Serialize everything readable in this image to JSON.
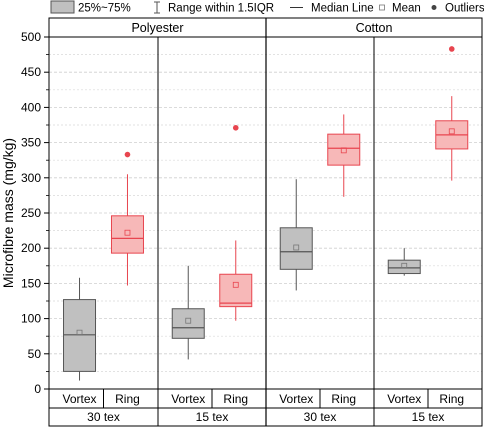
{
  "chart_data": {
    "type": "box",
    "ylabel": "Microfibre mass (mg/kg)",
    "ylim": [
      0,
      500
    ],
    "yticks": [
      0,
      50,
      100,
      150,
      200,
      250,
      300,
      350,
      400,
      450,
      500
    ],
    "legend": {
      "placement": "top",
      "items": [
        {
          "key": "box",
          "label": "25%~75%"
        },
        {
          "key": "whisker",
          "label": "Range within 1.5IQR"
        },
        {
          "key": "median",
          "label": "Median Line"
        },
        {
          "key": "mean",
          "label": "Mean"
        },
        {
          "key": "outlier",
          "label": "Outliers"
        }
      ]
    },
    "fibre_groups": [
      "Polyester",
      "Cotton"
    ],
    "tex_groups": [
      "30 tex",
      "15 tex",
      "30 tex",
      "15 tex"
    ],
    "categories": [
      "Vortex",
      "Ring"
    ],
    "colors": {
      "vortex_fill": "#c0c0c0",
      "vortex_stroke": "#555555",
      "ring_fill": "#f7b8b8",
      "ring_stroke": "#e8454f",
      "outlier": "#e8454f"
    },
    "boxes": [
      {
        "fibre": "Polyester",
        "tex": "30 tex",
        "spinning": "Vortex",
        "whisker_low": 12,
        "q1": 25,
        "median": 77,
        "q3": 127,
        "whisker_high": 158,
        "mean": 80,
        "outliers": []
      },
      {
        "fibre": "Polyester",
        "tex": "30 tex",
        "spinning": "Ring",
        "whisker_low": 147,
        "q1": 193,
        "median": 214,
        "q3": 246,
        "whisker_high": 305,
        "mean": 222,
        "outliers": [
          333
        ]
      },
      {
        "fibre": "Polyester",
        "tex": "15 tex",
        "spinning": "Vortex",
        "whisker_low": 42,
        "q1": 72,
        "median": 87,
        "q3": 114,
        "whisker_high": 175,
        "mean": 97,
        "outliers": []
      },
      {
        "fibre": "Polyester",
        "tex": "15 tex",
        "spinning": "Ring",
        "whisker_low": 97,
        "q1": 117,
        "median": 122,
        "q3": 163,
        "whisker_high": 211,
        "mean": 148,
        "outliers": [
          371
        ]
      },
      {
        "fibre": "Cotton",
        "tex": "30 tex",
        "spinning": "Vortex",
        "whisker_low": 140,
        "q1": 170,
        "median": 195,
        "q3": 229,
        "whisker_high": 298,
        "mean": 201,
        "outliers": []
      },
      {
        "fibre": "Cotton",
        "tex": "30 tex",
        "spinning": "Ring",
        "whisker_low": 273,
        "q1": 318,
        "median": 342,
        "q3": 362,
        "whisker_high": 390,
        "mean": 339,
        "outliers": []
      },
      {
        "fibre": "Cotton",
        "tex": "15 tex",
        "spinning": "Vortex",
        "whisker_low": 161,
        "q1": 164,
        "median": 172,
        "q3": 183,
        "whisker_high": 200,
        "mean": 175,
        "outliers": []
      },
      {
        "fibre": "Cotton",
        "tex": "15 tex",
        "spinning": "Ring",
        "whisker_low": 296,
        "q1": 341,
        "median": 361,
        "q3": 381,
        "whisker_high": 416,
        "mean": 366,
        "outliers": [
          483
        ]
      }
    ]
  }
}
